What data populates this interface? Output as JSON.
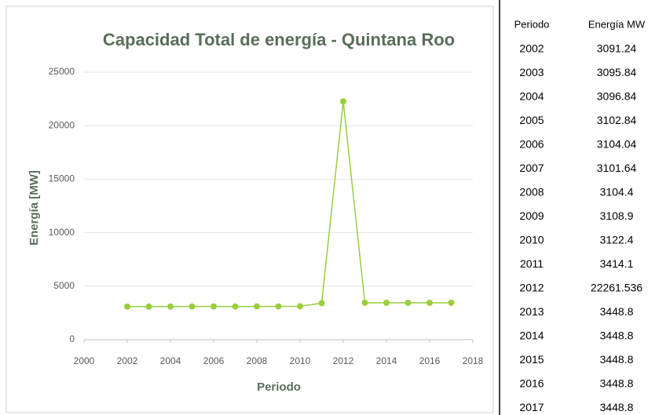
{
  "chart_data": {
    "type": "line",
    "title": "Capacidad Total de energía - Quintana Roo",
    "x_label": "Periodo",
    "y_label": "Energía [MW]",
    "x": [
      2002,
      2003,
      2004,
      2005,
      2006,
      2007,
      2008,
      2009,
      2010,
      2011,
      2012,
      2013,
      2014,
      2015,
      2016,
      2017
    ],
    "values": [
      3091.24,
      3095.84,
      3096.84,
      3102.84,
      3104.04,
      3101.64,
      3104.4,
      3108.9,
      3122.4,
      3414.1,
      22261.536,
      3448.8,
      3448.8,
      3448.8,
      3448.8,
      3448.8
    ],
    "color": "#9acd3c",
    "xlim": [
      2000,
      2018
    ],
    "xticks": [
      2000,
      2002,
      2004,
      2006,
      2008,
      2010,
      2012,
      2014,
      2016,
      2018
    ],
    "ylim": [
      0,
      25000
    ],
    "yticks": [
      0,
      5000,
      10000,
      15000,
      20000,
      25000
    ],
    "grid": true
  },
  "table": {
    "header": [
      "Periodo",
      "Energía MW"
    ],
    "rows": [
      [
        "2002",
        "3091.24"
      ],
      [
        "2003",
        "3095.84"
      ],
      [
        "2004",
        "3096.84"
      ],
      [
        "2005",
        "3102.84"
      ],
      [
        "2006",
        "3104.04"
      ],
      [
        "2007",
        "3101.64"
      ],
      [
        "2008",
        "3104.4"
      ],
      [
        "2009",
        "3108.9"
      ],
      [
        "2010",
        "3122.4"
      ],
      [
        "2011",
        "3414.1"
      ],
      [
        "2012",
        "22261.536"
      ],
      [
        "2013",
        "3448.8"
      ],
      [
        "2014",
        "3448.8"
      ],
      [
        "2015",
        "3448.8"
      ],
      [
        "2016",
        "3448.8"
      ],
      [
        "2017",
        "3448.8"
      ]
    ]
  }
}
